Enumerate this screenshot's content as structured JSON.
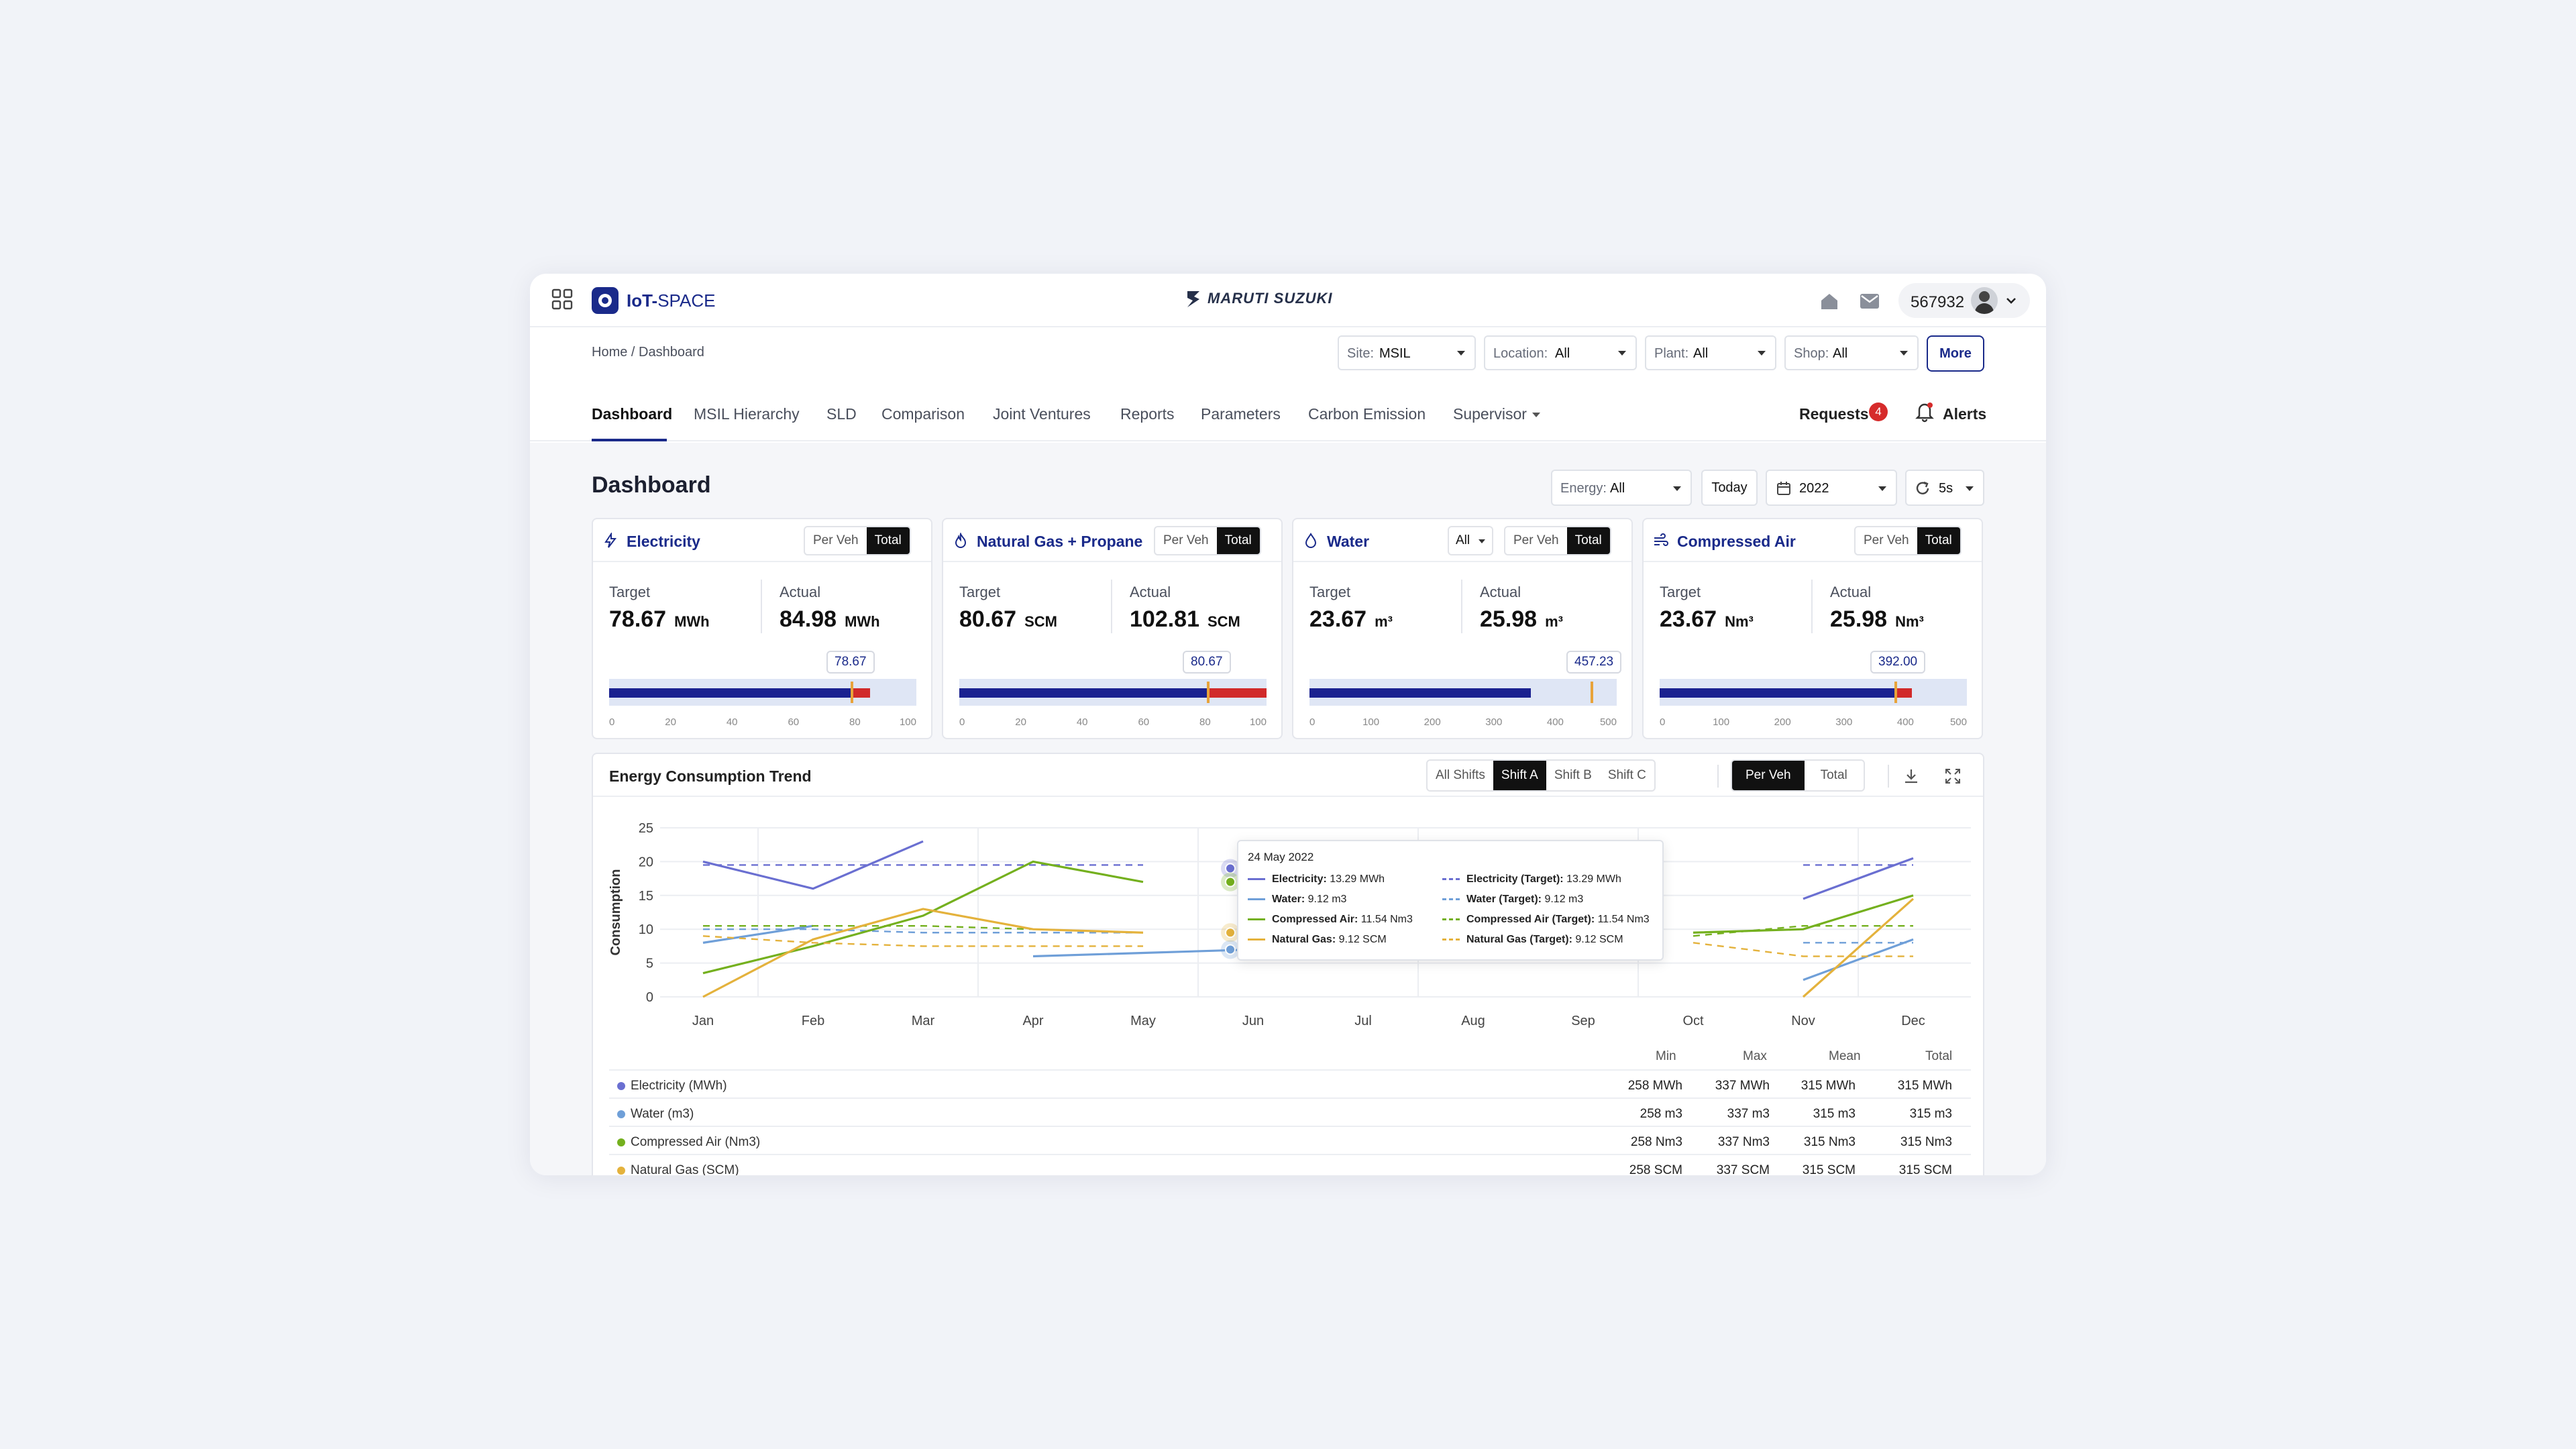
{
  "header": {
    "app_name_main": "IoT-",
    "app_name_accent": "SPACE",
    "brand": "MARUTI SUZUKI",
    "user_id": "567932"
  },
  "breadcrumb": "Home / Dashboard",
  "filters": {
    "site": {
      "label": "Site:",
      "value": "MSIL"
    },
    "location": {
      "label": "Location:",
      "value": "All"
    },
    "plant": {
      "label": "Plant:",
      "value": "All"
    },
    "shop": {
      "label": "Shop:",
      "value": "All"
    },
    "more_label": "More"
  },
  "tabs": [
    "Dashboard",
    "MSIL Hierarchy",
    "SLD",
    "Comparison",
    "Joint Ventures",
    "Reports",
    "Parameters",
    "Carbon Emission",
    "Supervisor"
  ],
  "requests": {
    "label": "Requests",
    "count": "4"
  },
  "alerts_label": "Alerts",
  "dashboard": {
    "title": "Dashboard",
    "energy_filter": {
      "label": "Energy:",
      "value": "All"
    },
    "today_label": "Today",
    "year": "2022",
    "refresh": "5s"
  },
  "cards": [
    {
      "title": "Electricity",
      "icon": "bolt-icon",
      "toggle": [
        "Per Veh",
        "Total"
      ],
      "active": "Total",
      "target_label": "Target",
      "target": "78.67",
      "actual_label": "Actual",
      "actual": "84.98",
      "unit_t": "MWh",
      "unit_a": "MWh",
      "marker_label": "78.67",
      "fill": 0.7867,
      "actual_frac": 0.8498,
      "marker": 0.7867,
      "ticks": [
        "0",
        "20",
        "40",
        "60",
        "80",
        "100"
      ]
    },
    {
      "title": "Natural Gas + Propane",
      "icon": "flame-icon",
      "toggle": [
        "Per Veh",
        "Total"
      ],
      "active": "Total",
      "target_label": "Target",
      "target": "80.67",
      "actual_label": "Actual",
      "actual": "102.81",
      "unit_t": "SCM",
      "unit_a": "SCM",
      "marker_label": "80.67",
      "fill": 0.8067,
      "actual_frac": 1.0,
      "marker": 0.8067,
      "ticks": [
        "0",
        "20",
        "40",
        "60",
        "80",
        "100"
      ]
    },
    {
      "title": "Water",
      "icon": "drop-icon",
      "dropdown": "All",
      "toggle": [
        "Per Veh",
        "Total"
      ],
      "active": "Total",
      "target_label": "Target",
      "target": "23.67",
      "actual_label": "Actual",
      "actual": "25.98",
      "unit_t": "m³",
      "unit_a": "m³",
      "marker_label": "457.23",
      "fill": 0.72,
      "actual_frac": 0.72,
      "marker": 0.9145,
      "ticks": [
        "0",
        "100",
        "200",
        "300",
        "400",
        "500"
      ]
    },
    {
      "title": "Compressed Air",
      "icon": "wind-icon",
      "toggle": [
        "Per Veh",
        "Total"
      ],
      "active": "Total",
      "target_label": "Target",
      "target": "23.67",
      "actual_label": "Actual",
      "actual": "25.98",
      "unit_t": "Nm³",
      "unit_a": "Nm³",
      "marker_label": "392.00",
      "fill": 0.764,
      "actual_frac": 0.82,
      "marker": 0.764,
      "ticks": [
        "0",
        "100",
        "200",
        "300",
        "400",
        "500"
      ]
    }
  ],
  "trend": {
    "title": "Energy Consumption Trend",
    "shifts": [
      "All Shifts",
      "Shift A",
      "Shift B",
      "Shift C"
    ],
    "active_shift": "Shift A",
    "modes": [
      "Per Veh",
      "Total"
    ],
    "active_mode": "Per Veh",
    "tooltip": {
      "date": "24 May 2022",
      "rows": [
        {
          "name": "Electricity:",
          "value": "13.29 MWh",
          "color": "#6a6fd1",
          "dashed": false
        },
        {
          "name": "Electricity (Target):",
          "value": "13.29 MWh",
          "color": "#6a6fd1",
          "dashed": true
        },
        {
          "name": "Water:",
          "value": "9.12 m3",
          "color": "#6f9fd8",
          "dashed": false
        },
        {
          "name": "Water (Target):",
          "value": "9.12 m3",
          "color": "#6f9fd8",
          "dashed": true
        },
        {
          "name": "Compressed Air:",
          "value": "11.54 Nm3",
          "color": "#74b01e",
          "dashed": false
        },
        {
          "name": "Compressed Air (Target):",
          "value": "11.54 Nm3",
          "color": "#74b01e",
          "dashed": true
        },
        {
          "name": "Natural Gas:",
          "value": "9.12 SCM",
          "color": "#e4b23c",
          "dashed": false
        },
        {
          "name": "Natural Gas (Target):",
          "value": "9.12 SCM",
          "color": "#e4b23c",
          "dashed": true
        }
      ]
    },
    "table": {
      "headers": [
        "Min",
        "Max",
        "Mean",
        "Total"
      ],
      "rows": [
        {
          "name": "Electricity (MWh)",
          "color": "#6a6fd1",
          "min": "258 MWh",
          "max": "337 MWh",
          "mean": "315 MWh",
          "total": "315 MWh"
        },
        {
          "name": "Water (m3)",
          "color": "#6f9fd8",
          "min": "258 m3",
          "max": "337 m3",
          "mean": "315 m3",
          "total": "315 m3"
        },
        {
          "name": "Compressed Air (Nm3)",
          "color": "#74b01e",
          "min": "258 Nm3",
          "max": "337 Nm3",
          "mean": "315 Nm3",
          "total": "315 Nm3"
        },
        {
          "name": "Natural Gas (SCM)",
          "color": "#e4b23c",
          "min": "258 SCM",
          "max": "337 SCM",
          "mean": "315 SCM",
          "total": "315 SCM"
        }
      ]
    }
  },
  "chart_data": {
    "type": "line",
    "ylabel": "Consumption",
    "ylim": [
      0,
      25
    ],
    "yticks": [
      0,
      5,
      10,
      15,
      20,
      25
    ],
    "categories": [
      "Jan",
      "Feb",
      "Mar",
      "Apr",
      "May",
      "Jun",
      "Jul",
      "Aug",
      "Sep",
      "Oct",
      "Nov",
      "Dec"
    ],
    "grid": true,
    "series": [
      {
        "name": "Electricity",
        "color": "#6a6fd1",
        "dashed": false,
        "values": [
          20,
          16,
          23,
          null,
          19,
          null,
          null,
          null,
          null,
          null,
          14.5,
          20.5
        ]
      },
      {
        "name": "Electricity (Target)",
        "color": "#6a6fd1",
        "dashed": true,
        "values": [
          19.5,
          19.5,
          19.5,
          19.5,
          19.5,
          null,
          null,
          null,
          null,
          null,
          19.5,
          19.5
        ]
      },
      {
        "name": "Water",
        "color": "#6f9fd8",
        "dashed": false,
        "values": [
          8,
          10.5,
          null,
          6,
          6.5,
          7,
          null,
          null,
          null,
          null,
          2.5,
          8.5
        ]
      },
      {
        "name": "Water (Target)",
        "color": "#6f9fd8",
        "dashed": true,
        "values": [
          10,
          10,
          9.5,
          9.5,
          9.5,
          null,
          null,
          null,
          null,
          null,
          8,
          8
        ]
      },
      {
        "name": "Compressed Air",
        "color": "#74b01e",
        "dashed": false,
        "values": [
          3.5,
          7.5,
          12,
          20,
          17,
          null,
          null,
          null,
          null,
          9.5,
          10,
          15
        ]
      },
      {
        "name": "Compressed Air (Target)",
        "color": "#74b01e",
        "dashed": true,
        "values": [
          10.5,
          10.5,
          10.5,
          10,
          9.5,
          null,
          null,
          null,
          null,
          9,
          10.5,
          10.5
        ]
      },
      {
        "name": "Natural Gas",
        "color": "#e4b23c",
        "dashed": false,
        "values": [
          0,
          8.5,
          13,
          10,
          9.5,
          null,
          null,
          null,
          null,
          null,
          0,
          14.5
        ]
      },
      {
        "name": "Natural Gas (Target)",
        "color": "#e4b23c",
        "dashed": true,
        "values": [
          9,
          8,
          7.5,
          7.5,
          7.5,
          null,
          null,
          null,
          null,
          8,
          6,
          6
        ]
      }
    ]
  }
}
